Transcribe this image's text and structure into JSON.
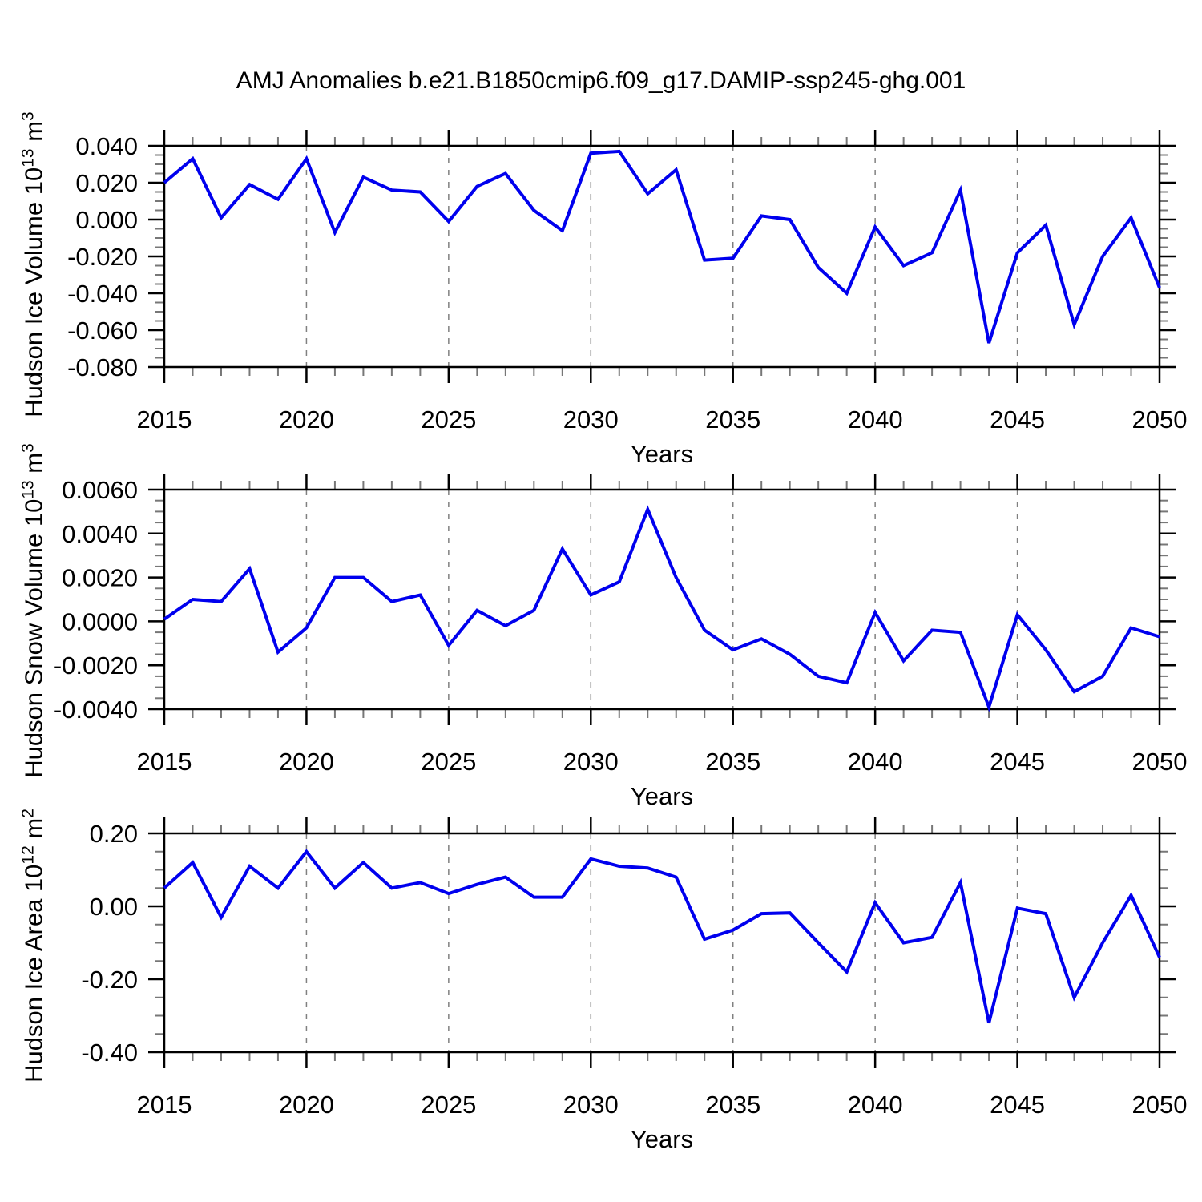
{
  "title": "AMJ Anomalies b.e21.B1850cmip6.f09_g17.DAMIP-ssp245-ghg.001",
  "style": {
    "line_color": "#0000EE",
    "grid_color": "#808080",
    "minor_tick_color": "#777777",
    "axis_color": "#000000",
    "background": "#FFFFFF"
  },
  "chart_data": [
    {
      "type": "line",
      "series_name": "hudson-ice-volume-anomaly",
      "ylabel": {
        "base": "Hudson Ice Volume 10",
        "exp": "13",
        "unit": " m",
        "unit_exp": "3"
      },
      "xlabel": "Years",
      "x": [
        2015,
        2016,
        2017,
        2018,
        2019,
        2020,
        2021,
        2022,
        2023,
        2024,
        2025,
        2026,
        2027,
        2028,
        2029,
        2030,
        2031,
        2032,
        2033,
        2034,
        2035,
        2036,
        2037,
        2038,
        2039,
        2040,
        2041,
        2042,
        2043,
        2044,
        2045,
        2046,
        2047,
        2048,
        2049,
        2050
      ],
      "values": [
        0.02,
        0.033,
        0.001,
        0.019,
        0.011,
        0.033,
        -0.007,
        0.023,
        0.016,
        0.015,
        -0.001,
        0.018,
        0.025,
        0.005,
        -0.006,
        0.036,
        0.037,
        0.014,
        0.027,
        -0.022,
        -0.021,
        0.002,
        0.0,
        -0.026,
        -0.04,
        -0.004,
        -0.025,
        -0.018,
        0.016,
        -0.067,
        -0.018,
        -0.003,
        -0.057,
        -0.02,
        0.001,
        -0.037
      ],
      "ylim": [
        -0.08,
        0.04
      ],
      "yticks": [
        0.04,
        0.02,
        0,
        -0.02,
        -0.04,
        -0.06,
        -0.08
      ],
      "ytick_labels": [
        "0.040",
        "0.020",
        "0.000",
        "-0.020",
        "-0.040",
        "-0.060",
        "-0.080"
      ],
      "minor_step_y": 0.005,
      "xlim": [
        2015,
        2050
      ],
      "xticks": [
        2015,
        2020,
        2025,
        2030,
        2035,
        2040,
        2045,
        2050
      ],
      "gridlines_x": [
        2020,
        2025,
        2030,
        2035,
        2040,
        2045
      ],
      "grid": "vertical-dashed",
      "legend": "none"
    },
    {
      "type": "line",
      "series_name": "hudson-snow-volume-anomaly",
      "ylabel": {
        "base": "Hudson Snow Volume 10",
        "exp": "13",
        "unit": " m",
        "unit_exp": "3"
      },
      "xlabel": "Years",
      "x": [
        2015,
        2016,
        2017,
        2018,
        2019,
        2020,
        2021,
        2022,
        2023,
        2024,
        2025,
        2026,
        2027,
        2028,
        2029,
        2030,
        2031,
        2032,
        2033,
        2034,
        2035,
        2036,
        2037,
        2038,
        2039,
        2040,
        2041,
        2042,
        2043,
        2044,
        2045,
        2046,
        2047,
        2048,
        2049,
        2050
      ],
      "values": [
        0.0001,
        0.001,
        0.0009,
        0.0024,
        -0.0014,
        -0.0003,
        0.002,
        0.002,
        0.0009,
        0.0012,
        -0.0011,
        0.0005,
        -0.0002,
        0.0005,
        0.0033,
        0.0012,
        0.0018,
        0.0051,
        0.002,
        -0.0004,
        -0.0013,
        -0.0008,
        -0.0015,
        -0.0025,
        -0.0028,
        0.0004,
        -0.0018,
        -0.0004,
        -0.0005,
        -0.0039,
        0.0003,
        -0.0013,
        -0.0032,
        -0.0025,
        -0.0003,
        -0.0007
      ],
      "ylim": [
        -0.004,
        0.006
      ],
      "yticks": [
        0.006,
        0.004,
        0.002,
        0,
        -0.002,
        -0.004
      ],
      "ytick_labels": [
        "0.0060",
        "0.0040",
        "0.0020",
        "0.0000",
        "-0.0020",
        "-0.0040"
      ],
      "minor_step_y": 0.0005,
      "xlim": [
        2015,
        2050
      ],
      "xticks": [
        2015,
        2020,
        2025,
        2030,
        2035,
        2040,
        2045,
        2050
      ],
      "gridlines_x": [
        2020,
        2025,
        2030,
        2035,
        2040,
        2045
      ],
      "grid": "vertical-dashed",
      "legend": "none"
    },
    {
      "type": "line",
      "series_name": "hudson-ice-area-anomaly",
      "ylabel": {
        "base": "Hudson Ice Area 10",
        "exp": "12",
        "unit": " m",
        "unit_exp": "2"
      },
      "xlabel": "Years",
      "x": [
        2015,
        2016,
        2017,
        2018,
        2019,
        2020,
        2021,
        2022,
        2023,
        2024,
        2025,
        2026,
        2027,
        2028,
        2029,
        2030,
        2031,
        2032,
        2033,
        2034,
        2035,
        2036,
        2037,
        2038,
        2039,
        2040,
        2041,
        2042,
        2043,
        2044,
        2045,
        2046,
        2047,
        2048,
        2049,
        2050
      ],
      "values": [
        0.05,
        0.12,
        -0.03,
        0.11,
        0.05,
        0.15,
        0.05,
        0.12,
        0.05,
        0.065,
        0.035,
        0.06,
        0.08,
        0.025,
        0.025,
        0.13,
        0.11,
        0.105,
        0.08,
        -0.09,
        -0.065,
        -0.02,
        -0.018,
        -0.1,
        -0.18,
        0.01,
        -0.1,
        -0.085,
        0.065,
        -0.32,
        -0.005,
        -0.02,
        -0.25,
        -0.1,
        0.03,
        -0.14
      ],
      "ylim": [
        -0.4,
        0.2
      ],
      "yticks": [
        0.2,
        0,
        -0.2,
        -0.4
      ],
      "ytick_labels": [
        "0.20",
        "0.00",
        "-0.20",
        "-0.40"
      ],
      "minor_step_y": 0.05,
      "xlim": [
        2015,
        2050
      ],
      "xticks": [
        2015,
        2020,
        2025,
        2030,
        2035,
        2040,
        2045,
        2050
      ],
      "gridlines_x": [
        2020,
        2025,
        2030,
        2035,
        2040,
        2045
      ],
      "grid": "vertical-dashed",
      "legend": "none"
    }
  ]
}
